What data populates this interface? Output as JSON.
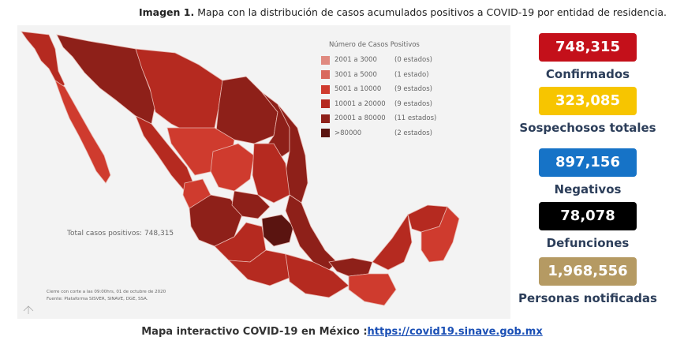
{
  "caption": {
    "prefix": "Imagen 1.",
    "text": "Mapa con la distribución de casos acumulados positivos a COVID-19 por entidad de residencia."
  },
  "legend": {
    "title": "Número de Casos Positivos",
    "items": [
      {
        "range": "2001 a    3000",
        "count": "(0 estados)",
        "color": "#e08a80"
      },
      {
        "range": "3001 a    5000",
        "count": "(1 estado)",
        "color": "#d96a5e"
      },
      {
        "range": "5001 a  10000",
        "count": "(9 estados)",
        "color": "#cf3b2e"
      },
      {
        "range": "10001 a  20000",
        "count": "(9 estados)",
        "color": "#b52a20"
      },
      {
        "range": "20001 a  80000",
        "count": "(11 estados)",
        "color": "#8e2019"
      },
      {
        "range": ">80000",
        "count": "(2 estados)",
        "color": "#5a1410"
      }
    ]
  },
  "map": {
    "total_label": "Total casos positivos: 748,315",
    "note_line1": "Cierre con corte a las 09:00hrs, 01 de octubre de 2020",
    "note_line2": "Fuente: Plataforma SISVER, SINAVE, DGE, SSA."
  },
  "stats": [
    {
      "value": "748,315",
      "label": "Confirmados",
      "color": "#c4101a"
    },
    {
      "value": "323,085",
      "label": "Sospechosos totales",
      "color": "#f7c500"
    },
    {
      "value": "897,156",
      "label": "Negativos",
      "color": "#1673c7"
    },
    {
      "value": "78,078",
      "label": "Defunciones",
      "color": "#000000"
    },
    {
      "value": "1,968,556",
      "label": "Personas notificadas",
      "color": "#b59a63"
    }
  ],
  "footer": {
    "text": "Mapa interactivo COVID-19 en México :",
    "link": "https://covid19.sinave.gob.mx"
  }
}
